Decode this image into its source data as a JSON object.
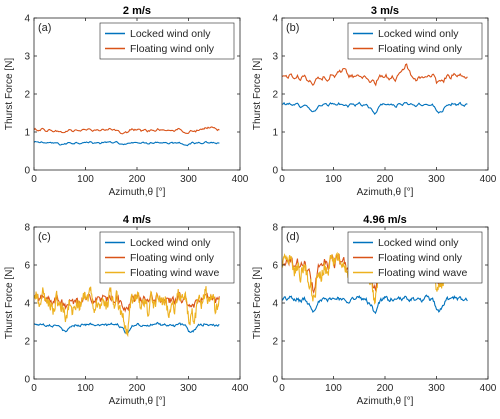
{
  "figure": {
    "colors": {
      "locked": "#0072BD",
      "floating": "#D95319",
      "wave": "#EDB120",
      "axis": "#262626",
      "text": "#262626"
    }
  },
  "chart_data": [
    {
      "type": "line",
      "panel_label": "(a)",
      "title": "2 m/s",
      "xlabel": "Azimuth,θ [°]",
      "ylabel": "Thurst Force [N]",
      "xlim": [
        0,
        400
      ],
      "ylim": [
        0,
        4
      ],
      "xticks": [
        0,
        100,
        200,
        300,
        400
      ],
      "yticks": [
        0,
        1,
        2,
        3,
        4
      ],
      "legend_position": "top-right",
      "series": [
        {
          "name": "Locked wind only",
          "color_key": "locked",
          "x_range": [
            0,
            360
          ],
          "points": 181,
          "mean": 0.72,
          "noise": 0.03,
          "dips": [
            [
              55,
              -0.06
            ],
            [
              175,
              -0.05
            ],
            [
              295,
              -0.06
            ]
          ],
          "ripple": 0.02
        },
        {
          "name": "Floating wind only",
          "color_key": "floating",
          "x_range": [
            0,
            360
          ],
          "points": 181,
          "mean": 1.05,
          "noise": 0.04,
          "dips": [
            [
              55,
              -0.08
            ],
            [
              175,
              -0.06
            ],
            [
              295,
              -0.08
            ],
            [
              345,
              0.1
            ]
          ],
          "ripple": 0.03
        }
      ]
    },
    {
      "type": "line",
      "panel_label": "(b)",
      "title": "3 m/s",
      "xlabel": "Azimuth,θ [°]",
      "ylabel": "Thurst Force [N]",
      "xlim": [
        0,
        400
      ],
      "ylim": [
        0,
        4
      ],
      "xticks": [
        0,
        100,
        200,
        300,
        400
      ],
      "yticks": [
        0,
        1,
        2,
        3,
        4
      ],
      "legend_position": "top-right",
      "series": [
        {
          "name": "Locked wind only",
          "color_key": "locked",
          "x_range": [
            0,
            360
          ],
          "points": 181,
          "mean": 1.72,
          "noise": 0.05,
          "dips": [
            [
              60,
              -0.2
            ],
            [
              180,
              -0.2
            ],
            [
              305,
              -0.2
            ]
          ],
          "ripple": 0.04
        },
        {
          "name": "Floating wind only",
          "color_key": "floating",
          "x_range": [
            0,
            360
          ],
          "points": 181,
          "mean": 2.45,
          "noise": 0.08,
          "dips": [
            [
              60,
              -0.18
            ],
            [
              120,
              0.25
            ],
            [
              180,
              -0.15
            ],
            [
              240,
              0.25
            ],
            [
              305,
              -0.15
            ]
          ],
          "ripple": 0.06
        }
      ]
    },
    {
      "type": "line",
      "panel_label": "(c)",
      "title": "4 m/s",
      "xlabel": "Azimuth,θ [°]",
      "ylabel": "Thurst Force [N]",
      "xlim": [
        0,
        400
      ],
      "ylim": [
        0,
        8
      ],
      "xticks": [
        0,
        100,
        200,
        300,
        400
      ],
      "yticks": [
        0,
        2,
        4,
        6,
        8
      ],
      "legend_position": "top-right",
      "series": [
        {
          "name": "Locked wind only",
          "color_key": "locked",
          "x_range": [
            0,
            360
          ],
          "points": 241,
          "mean": 2.85,
          "noise": 0.08,
          "dips": [
            [
              60,
              -0.4
            ],
            [
              180,
              -0.4
            ],
            [
              305,
              -0.4
            ]
          ],
          "ripple": 0.06
        },
        {
          "name": "Floating wind only",
          "color_key": "floating",
          "x_range": [
            0,
            360
          ],
          "points": 241,
          "mean": 4.2,
          "noise": 0.3,
          "dips": [
            [
              60,
              -0.5
            ],
            [
              180,
              -0.5
            ],
            [
              305,
              -0.4
            ]
          ],
          "ripple": 0.15
        },
        {
          "name": "Floating wind wave",
          "color_key": "wave",
          "x_range": [
            0,
            360
          ],
          "points": 361,
          "mean": 4.1,
          "noise": 0.55,
          "dips": [
            [
              60,
              -0.9
            ],
            [
              180,
              -1.4
            ],
            [
              305,
              -0.8
            ]
          ],
          "ripple": 0.5
        }
      ]
    },
    {
      "type": "line",
      "panel_label": "(d)",
      "title": "4.96 m/s",
      "xlabel": "Azimuth,θ [°]",
      "ylabel": "Thurst Force [N]",
      "xlim": [
        0,
        400
      ],
      "ylim": [
        0,
        8
      ],
      "xticks": [
        0,
        100,
        200,
        300,
        400
      ],
      "yticks": [
        0,
        2,
        4,
        6,
        8
      ],
      "legend_position": "top-right",
      "series": [
        {
          "name": "Locked wind only",
          "color_key": "locked",
          "x_range": [
            0,
            360
          ],
          "points": 241,
          "mean": 4.2,
          "noise": 0.15,
          "dips": [
            [
              60,
              -0.6
            ],
            [
              180,
              -0.6
            ],
            [
              305,
              -0.6
            ]
          ],
          "ripple": 0.1
        },
        {
          "name": "Floating wind only",
          "color_key": "floating",
          "x_range": [
            0,
            360
          ],
          "points": 241,
          "mean": 6.1,
          "noise": 0.4,
          "dips": [
            [
              60,
              -1.4
            ],
            [
              180,
              -1.2
            ],
            [
              305,
              -1.0
            ]
          ],
          "ripple": 0.3
        },
        {
          "name": "Floating wind wave",
          "color_key": "wave",
          "x_range": [
            0,
            360
          ],
          "points": 361,
          "mean": 6.0,
          "noise": 0.6,
          "dips": [
            [
              60,
              -1.8
            ],
            [
              180,
              -1.5
            ],
            [
              305,
              -1.2
            ]
          ],
          "ripple": 0.5
        }
      ]
    }
  ]
}
